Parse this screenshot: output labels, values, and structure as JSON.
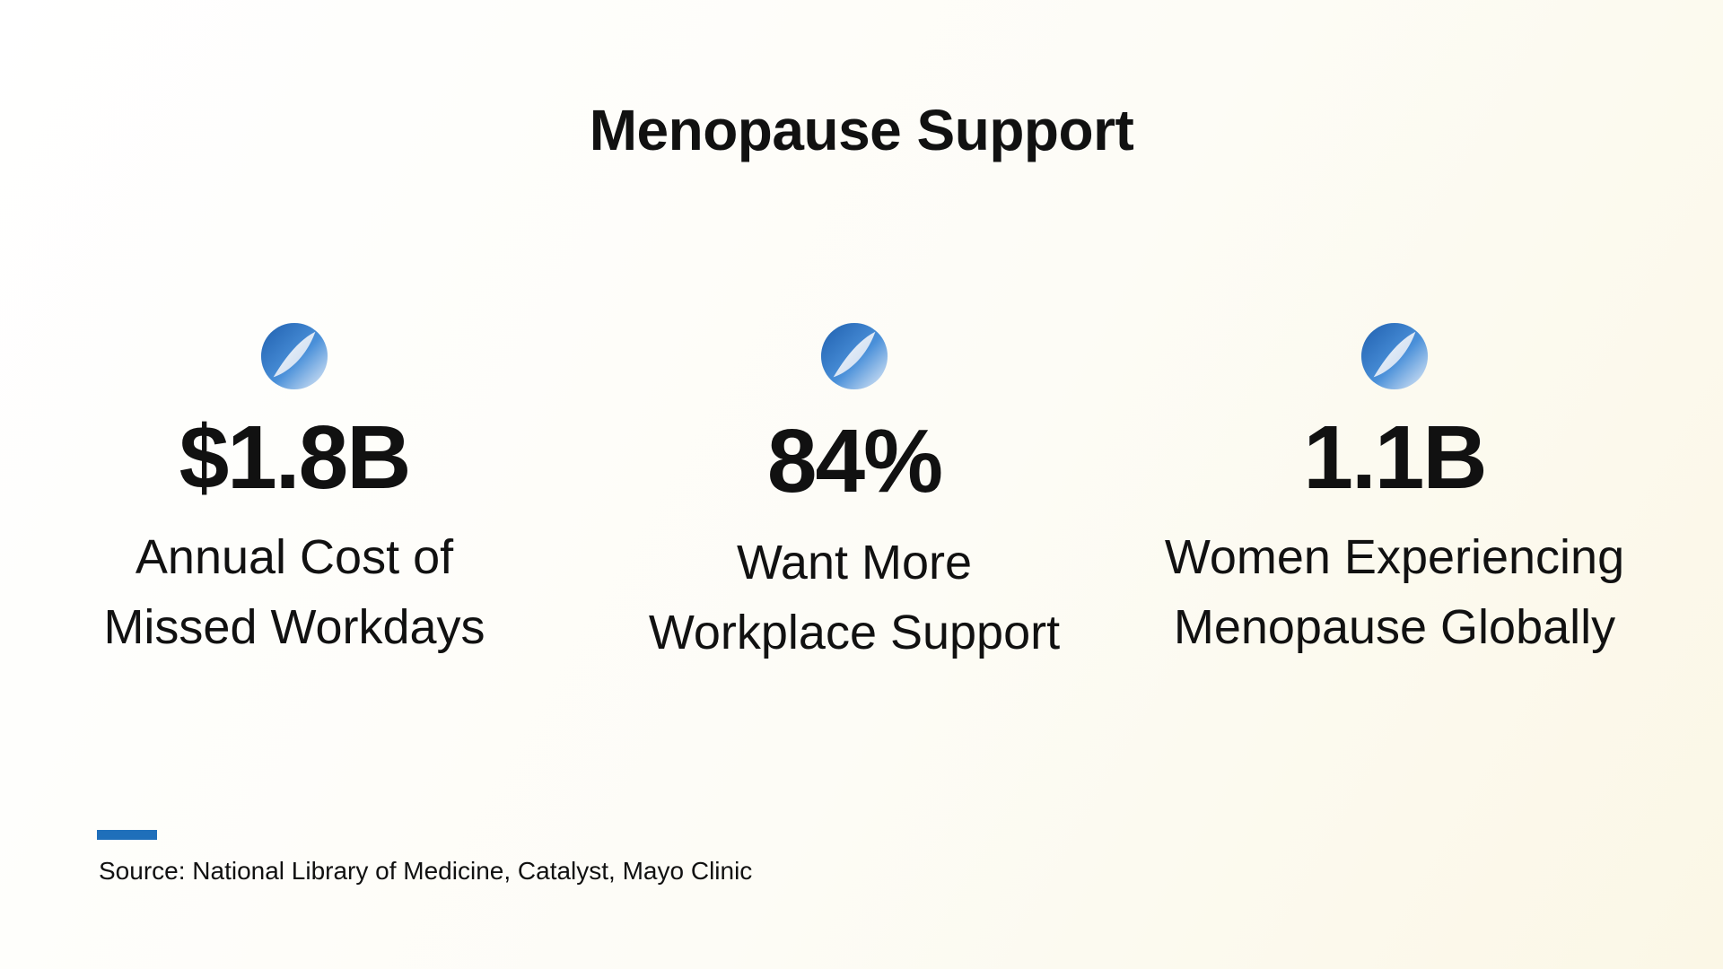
{
  "slide": {
    "title": "Menopause Support",
    "stats": [
      {
        "value": "$1.8B",
        "label_line1": "Annual Cost of",
        "label_line2": "Missed Workdays",
        "icon": "blue-orb-icon"
      },
      {
        "value": "84%",
        "label_line1": "Want More",
        "label_line2": "Workplace Support",
        "icon": "blue-orb-icon"
      },
      {
        "value": "1.1B",
        "label_line1": "Women Experiencing",
        "label_line2": "Menopause Globally",
        "icon": "blue-orb-icon"
      }
    ],
    "source": "Source: National Library of Medicine, Catalyst, Mayo Clinic",
    "accent_color": "#1f6fba"
  }
}
